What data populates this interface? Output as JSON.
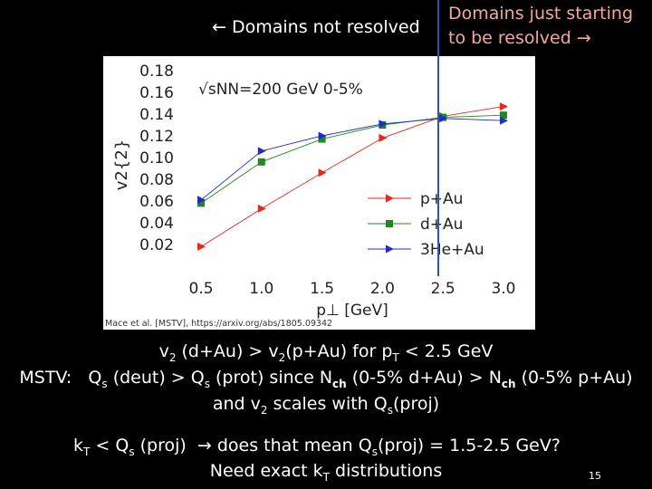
{
  "header": {
    "left_arrow": "←",
    "left_text": "Domains not resolved",
    "right_line1": "Domains just starting",
    "right_line2": "to be resolved",
    "right_arrow": "→"
  },
  "chart_data": {
    "type": "line",
    "annotation": "√sNN=200 GeV 0-5%",
    "xlabel": "p⊥ [GeV]",
    "ylabel": "v2{2}",
    "x": [
      0.5,
      1.0,
      1.5,
      2.0,
      2.5,
      3.0
    ],
    "xticks": [
      "0.5",
      "1.0",
      "1.5",
      "2.0",
      "2.5",
      "3.0"
    ],
    "yticks": [
      "0.02",
      "0.04",
      "0.06",
      "0.08",
      "0.10",
      "0.12",
      "0.14",
      "0.16",
      "0.18"
    ],
    "xlim": [
      0.35,
      3.15
    ],
    "ylim": [
      0.0,
      0.185
    ],
    "legend_position": "lower-right",
    "citation": "Mace et al. [MSTV], https://arxiv.org/abs/1805.09342",
    "series": [
      {
        "name": "p+Au",
        "marker": "triangle-right",
        "color": "#e8271c",
        "values": [
          0.018,
          0.053,
          0.086,
          0.118,
          0.138,
          0.147
        ]
      },
      {
        "name": "d+Au",
        "marker": "square",
        "color": "#1e8a1e",
        "values": [
          0.058,
          0.096,
          0.117,
          0.13,
          0.137,
          0.139
        ]
      },
      {
        "name": "3He+Au",
        "marker": "triangle-right",
        "color": "#1f2fbf",
        "values": [
          0.061,
          0.106,
          0.12,
          0.131,
          0.136,
          0.134
        ]
      }
    ]
  },
  "body_text": {
    "line1": "v2 (d+Au) > v2(p+Au) for pT < 2.5 GeV",
    "line2": "MSTV:   Qs (deut) > Qs (prot) since Nch (0-5% d+Au) > Nch (0-5% p+Au)",
    "line3": "and v2 scales with Qs(proj)",
    "line4": "kT < Qs (proj)  → does that mean Qs(proj) = 1.5-2.5 GeV?",
    "line5": "Need exact kT distributions"
  },
  "page_number": "15"
}
